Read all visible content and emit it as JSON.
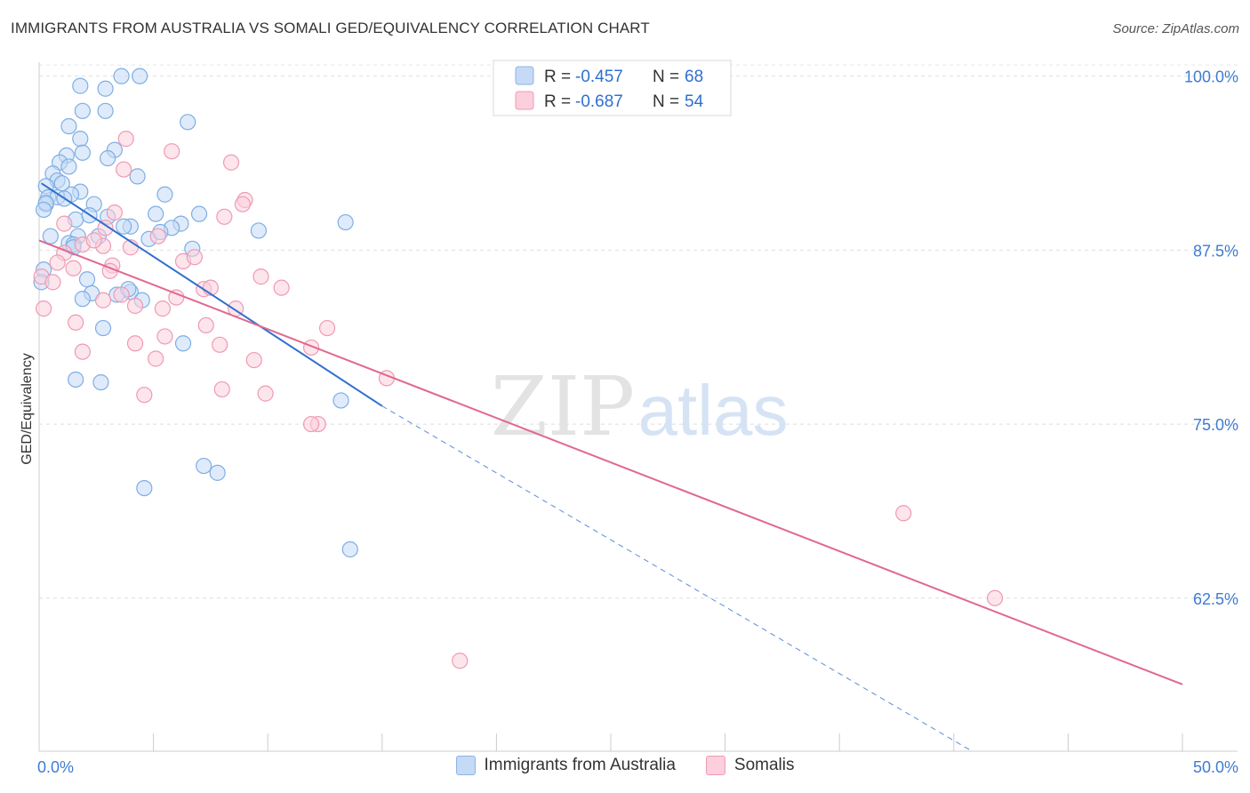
{
  "header": {
    "title": "IMMIGRANTS FROM AUSTRALIA VS SOMALI GED/EQUIVALENCY CORRELATION CHART",
    "source": "Source: ZipAtlas.com"
  },
  "watermark": {
    "zip": "ZIP",
    "atlas": "atlas"
  },
  "colors": {
    "blue_fill": "#c5daf5",
    "blue_stroke": "#7eaee4",
    "blue_line": "#2f6fd0",
    "pink_fill": "#fbcfdc",
    "pink_stroke": "#ef9ab4",
    "pink_line": "#e0688f",
    "tick_label": "#3e7bd4",
    "value_text": "#2f6fd0"
  },
  "legend": {
    "rows": [
      {
        "r_label": "R =",
        "r_value": "-0.457",
        "n_label": "N =",
        "n_value": "68"
      },
      {
        "r_label": "R =",
        "r_value": "-0.687",
        "n_label": "N =",
        "n_value": "54"
      }
    ]
  },
  "chart_data": {
    "type": "scatter",
    "title": "IMMIGRANTS FROM AUSTRALIA VS SOMALI GED/EQUIVALENCY CORRELATION CHART",
    "xlabel": "",
    "ylabel": "GED/Equivalency",
    "xlim": [
      0,
      50
    ],
    "ylim": [
      51.5,
      101
    ],
    "x_tick_labels": [
      "0.0%",
      "50.0%"
    ],
    "y_ticks": [
      62.5,
      75.0,
      87.5,
      100.0
    ],
    "y_tick_labels": [
      "62.5%",
      "75.0%",
      "87.5%",
      "100.0%"
    ],
    "grid": "horizontal dashed",
    "legend_position": "top-center",
    "series": [
      {
        "name": "Immigrants from Australia",
        "color": "#7eaee4",
        "r": -0.457,
        "n": 68,
        "trend": {
          "x": [
            0.1,
            15
          ],
          "y": [
            92.3,
            76.3
          ],
          "extrapolated_to": [
            40.8,
            51.5
          ]
        },
        "points": [
          [
            3.6,
            100.0
          ],
          [
            4.4,
            100.0
          ],
          [
            1.8,
            99.3
          ],
          [
            2.9,
            99.1
          ],
          [
            1.9,
            97.5
          ],
          [
            2.9,
            97.5
          ],
          [
            6.5,
            96.7
          ],
          [
            1.3,
            96.4
          ],
          [
            1.8,
            95.5
          ],
          [
            3.3,
            94.7
          ],
          [
            1.9,
            94.5
          ],
          [
            1.2,
            94.3
          ],
          [
            3.0,
            94.1
          ],
          [
            0.9,
            93.8
          ],
          [
            1.3,
            93.5
          ],
          [
            0.6,
            93.0
          ],
          [
            4.3,
            92.8
          ],
          [
            0.8,
            92.5
          ],
          [
            0.3,
            92.1
          ],
          [
            1.8,
            91.7
          ],
          [
            1.4,
            91.5
          ],
          [
            0.4,
            91.3
          ],
          [
            0.8,
            91.3
          ],
          [
            1.1,
            91.2
          ],
          [
            5.5,
            91.5
          ],
          [
            0.3,
            90.8
          ],
          [
            2.4,
            90.8
          ],
          [
            7.0,
            90.1
          ],
          [
            5.1,
            90.1
          ],
          [
            3.0,
            89.9
          ],
          [
            1.6,
            89.7
          ],
          [
            6.2,
            89.4
          ],
          [
            5.8,
            89.1
          ],
          [
            4.0,
            89.2
          ],
          [
            3.7,
            89.2
          ],
          [
            13.4,
            89.5
          ],
          [
            9.6,
            88.9
          ],
          [
            2.6,
            88.5
          ],
          [
            1.7,
            88.5
          ],
          [
            4.8,
            88.3
          ],
          [
            1.3,
            88.0
          ],
          [
            1.5,
            87.9
          ],
          [
            6.7,
            87.6
          ],
          [
            0.2,
            86.1
          ],
          [
            0.1,
            85.2
          ],
          [
            2.1,
            85.4
          ],
          [
            4.0,
            84.5
          ],
          [
            2.3,
            84.4
          ],
          [
            3.4,
            84.3
          ],
          [
            1.9,
            84.0
          ],
          [
            4.5,
            83.9
          ],
          [
            2.8,
            81.9
          ],
          [
            6.3,
            80.8
          ],
          [
            1.6,
            78.2
          ],
          [
            2.7,
            78.0
          ],
          [
            13.2,
            76.7
          ],
          [
            7.2,
            72.0
          ],
          [
            7.8,
            71.5
          ],
          [
            4.6,
            70.4
          ],
          [
            13.6,
            66.0
          ],
          [
            0.3,
            90.9
          ],
          [
            1.0,
            92.3
          ],
          [
            2.2,
            90.0
          ],
          [
            1.5,
            87.7
          ],
          [
            0.5,
            88.5
          ],
          [
            5.3,
            88.8
          ],
          [
            3.9,
            84.7
          ],
          [
            0.2,
            90.4
          ]
        ]
      },
      {
        "name": "Somalis",
        "color": "#ef9ab4",
        "r": -0.687,
        "n": 54,
        "trend": {
          "x": [
            0,
            50
          ],
          "y": [
            88.2,
            56.3
          ]
        },
        "points": [
          [
            3.8,
            95.5
          ],
          [
            5.8,
            94.6
          ],
          [
            8.4,
            93.8
          ],
          [
            3.7,
            93.3
          ],
          [
            9.0,
            91.1
          ],
          [
            8.9,
            90.8
          ],
          [
            3.3,
            90.2
          ],
          [
            8.1,
            89.9
          ],
          [
            1.1,
            89.4
          ],
          [
            2.9,
            89.1
          ],
          [
            5.2,
            88.5
          ],
          [
            1.9,
            87.9
          ],
          [
            2.8,
            87.8
          ],
          [
            4.0,
            87.7
          ],
          [
            1.1,
            87.3
          ],
          [
            6.3,
            86.7
          ],
          [
            3.2,
            86.4
          ],
          [
            1.5,
            86.2
          ],
          [
            3.1,
            86.0
          ],
          [
            0.1,
            85.6
          ],
          [
            0.6,
            85.2
          ],
          [
            10.6,
            84.8
          ],
          [
            7.2,
            84.7
          ],
          [
            7.5,
            84.8
          ],
          [
            6.0,
            84.1
          ],
          [
            3.6,
            84.3
          ],
          [
            2.8,
            83.9
          ],
          [
            4.2,
            83.5
          ],
          [
            5.4,
            83.3
          ],
          [
            8.6,
            83.3
          ],
          [
            0.2,
            83.3
          ],
          [
            1.6,
            82.3
          ],
          [
            7.3,
            82.1
          ],
          [
            5.5,
            81.3
          ],
          [
            4.2,
            80.8
          ],
          [
            7.9,
            80.7
          ],
          [
            11.9,
            80.5
          ],
          [
            1.9,
            80.2
          ],
          [
            5.1,
            79.7
          ],
          [
            9.4,
            79.6
          ],
          [
            15.2,
            78.3
          ],
          [
            8.0,
            77.5
          ],
          [
            9.9,
            77.2
          ],
          [
            4.6,
            77.1
          ],
          [
            12.2,
            75.0
          ],
          [
            11.9,
            75.0
          ],
          [
            37.8,
            68.6
          ],
          [
            41.8,
            62.5
          ],
          [
            18.4,
            58.0
          ],
          [
            2.4,
            88.2
          ],
          [
            6.8,
            87.0
          ],
          [
            9.7,
            85.6
          ],
          [
            12.6,
            81.9
          ],
          [
            0.8,
            86.6
          ]
        ]
      }
    ]
  }
}
